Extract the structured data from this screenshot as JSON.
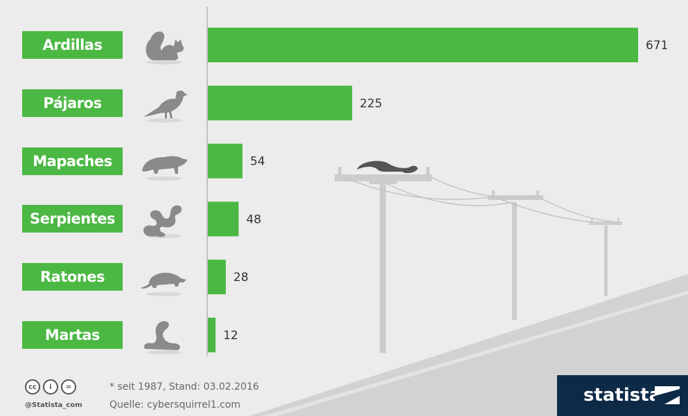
{
  "chart_data": {
    "type": "bar",
    "orientation": "horizontal",
    "categories": [
      "Ardillas",
      "Pájaros",
      "Mapaches",
      "Serpientes",
      "Ratones",
      "Martas"
    ],
    "values": [
      671,
      225,
      54,
      48,
      28,
      12
    ],
    "icons": [
      "squirrel-icon",
      "bird-icon",
      "raccoon-icon",
      "snake-icon",
      "rat-icon",
      "marten-icon"
    ],
    "xlim": [
      0,
      671
    ],
    "data_labels": true,
    "grid": false,
    "bar_color": "#4cb844",
    "label_box_color": "#4cb844",
    "background_color": "#ececec"
  },
  "footer": {
    "note": "* seit 1987,  Stand: 03.02.2016",
    "source": "Quelle: cybersquirrel1.com",
    "handle": "@Statista_com",
    "license_icons": [
      "cc",
      "i",
      "="
    ]
  },
  "brand": {
    "name": "statista",
    "color": "#0d2a47"
  }
}
